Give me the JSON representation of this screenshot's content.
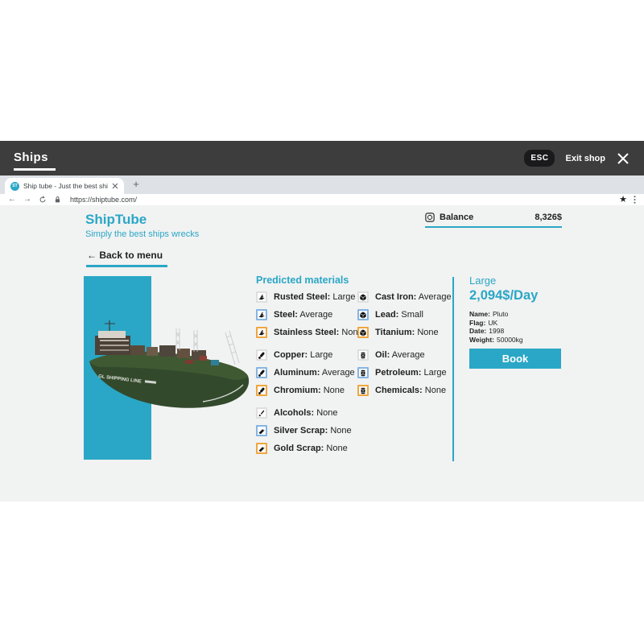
{
  "colors": {
    "teal": "#2AA7C6",
    "topbar_bg": "#3D3D3D",
    "esc_bg": "#1A1A1C",
    "tabstrip_bg": "#DEE1E6",
    "page_bg": "#F1F2F2",
    "accent_gray": "#DEDEDE",
    "accent_blue": "#85B5E2",
    "accent_orange": "#EEA63F"
  },
  "topbar": {
    "title": "Ships",
    "esc_key": "ESC",
    "exit_label": "Exit shop"
  },
  "browser": {
    "favicon_text": "ST",
    "tab_title": "Ship tube - Just the best ship...",
    "url": "https://shiptube.com/",
    "new_tab_plus": "+",
    "back_arrow": "←",
    "forward_arrow": "→",
    "bookmark_star": "★"
  },
  "site": {
    "title": "ShipTube",
    "tagline": "Simply the best ships wrecks",
    "balance_label": "Balance",
    "balance_value": "8,326$",
    "back_link": "← Back to menu"
  },
  "ship": {
    "hull_text": "GL SHIPPING LINE"
  },
  "materials": {
    "heading": "Predicted materials",
    "columns": [
      {
        "groups": [
          {
            "items": [
              {
                "label": "Rusted Steel:",
                "amount": "Large",
                "icon": "steel-beam",
                "accent": "gray"
              },
              {
                "label": "Steel:",
                "amount": "Average",
                "icon": "steel-beam",
                "accent": "blue"
              },
              {
                "label": "Stainless Steel:",
                "amount": "None",
                "icon": "steel-beam",
                "accent": "orange"
              }
            ]
          },
          {
            "items": [
              {
                "label": "Copper:",
                "amount": "Large",
                "icon": "ingot-stick",
                "accent": "gray"
              },
              {
                "label": "Aluminum:",
                "amount": "Average",
                "icon": "ingot-stick",
                "accent": "blue"
              },
              {
                "label": "Chromium:",
                "amount": "None",
                "icon": "ingot-stick",
                "accent": "orange"
              }
            ]
          },
          {
            "items": [
              {
                "label": "Alcohols:",
                "amount": "None",
                "icon": "brush",
                "accent": "gray"
              },
              {
                "label": "Silver Scrap:",
                "amount": "None",
                "icon": "scrap-bar",
                "accent": "blue"
              },
              {
                "label": "Gold Scrap:",
                "amount": "None",
                "icon": "scrap-bar",
                "accent": "orange"
              }
            ]
          }
        ]
      },
      {
        "groups": [
          {
            "items": [
              {
                "label": "Cast Iron:",
                "amount": "Average",
                "icon": "cube",
                "accent": "gray"
              },
              {
                "label": "Lead:",
                "amount": "Small",
                "icon": "cube",
                "accent": "blue"
              },
              {
                "label": "Titanium:",
                "amount": "None",
                "icon": "cube",
                "accent": "orange"
              }
            ]
          },
          {
            "items": [
              {
                "label": "Oil:",
                "amount": "Average",
                "icon": "barrel",
                "accent": "gray"
              },
              {
                "label": "Petroleum:",
                "amount": "Large",
                "icon": "barrel",
                "accent": "blue"
              },
              {
                "label": "Chemicals:",
                "amount": "None",
                "icon": "barrel",
                "accent": "orange"
              }
            ]
          }
        ]
      }
    ]
  },
  "offer": {
    "size": "Large",
    "price": "2,094$/Day",
    "details": [
      {
        "label": "Name:",
        "value": "Pluto"
      },
      {
        "label": "Flag:",
        "value": "UK"
      },
      {
        "label": "Date:",
        "value": "1998"
      },
      {
        "label": "Weight:",
        "value": "50000kg"
      }
    ],
    "book_label": "Book"
  }
}
